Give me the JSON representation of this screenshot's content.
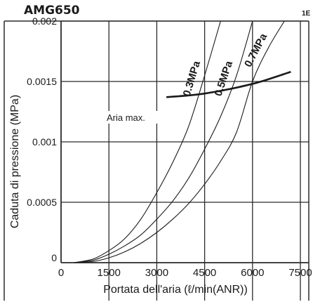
{
  "header": {
    "model": "AMG650",
    "corner_fragment": "1E"
  },
  "chart_data": {
    "type": "line",
    "title": "AMG650",
    "xlabel": "Portata dell'aria (ℓ/min(ANR))",
    "ylabel": "Caduta di pressione (MPa)",
    "xlim": [
      0,
      7500
    ],
    "ylim": [
      0,
      0.002
    ],
    "x_ticks": [
      0,
      1500,
      3000,
      4500,
      6000,
      7500
    ],
    "x_tick_labels": [
      "0",
      "1500",
      "3000",
      "4500",
      "6000",
      "7500"
    ],
    "y_ticks": [
      0,
      0.0005,
      0.001,
      0.0015,
      0.002
    ],
    "y_tick_labels": [
      "0",
      "0.0005",
      "0.001",
      "0.0015",
      "0.002"
    ],
    "grid": true,
    "series": [
      {
        "name": "0.3MPa",
        "x": [
          400,
          1000,
          1500,
          2000,
          2500,
          3000,
          3500,
          4000,
          4500,
          5000
        ],
        "y": [
          0,
          3e-05,
          0.0001,
          0.0002,
          0.00036,
          0.00058,
          0.00083,
          0.00113,
          0.00155,
          0.002
        ]
      },
      {
        "name": "0.5MPa",
        "x": [
          400,
          1000,
          1500,
          2000,
          2500,
          3000,
          3500,
          4000,
          4500,
          5000,
          5500,
          6000
        ],
        "y": [
          0,
          2e-05,
          7e-05,
          0.00014,
          0.00023,
          0.00036,
          0.00051,
          0.0007,
          0.00094,
          0.00121,
          0.00155,
          0.002
        ]
      },
      {
        "name": "0.7MPa",
        "x": [
          400,
          1000,
          1500,
          2000,
          2500,
          3000,
          3500,
          4000,
          4500,
          5000,
          5500,
          6000,
          6500,
          7000
        ],
        "y": [
          0,
          1e-05,
          4e-05,
          9e-05,
          0.00016,
          0.00025,
          0.00036,
          0.00049,
          0.00065,
          0.00084,
          0.00108,
          0.0015,
          0.00178,
          0.002
        ]
      }
    ],
    "annotation": {
      "label": "Aria max.",
      "x": [
        3300,
        4500,
        6000,
        7200
      ],
      "y": [
        0.00137,
        0.0014,
        0.00148,
        0.00158
      ]
    },
    "colors": {
      "curve": "#1a1a1a",
      "grid": "#2a2a2a",
      "background": "#ffffff"
    }
  }
}
